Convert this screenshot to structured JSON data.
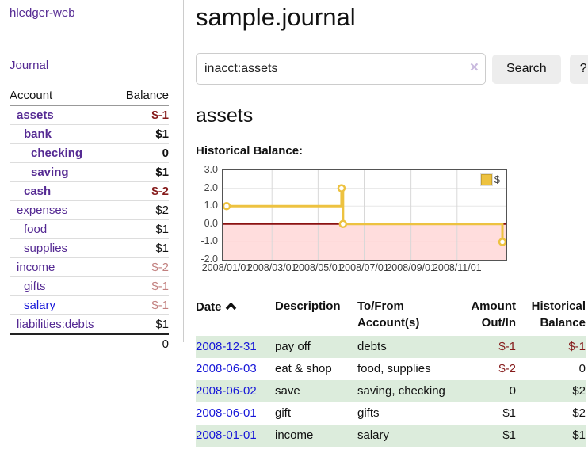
{
  "app_title": "hledger-web",
  "sidebar": {
    "journal_link": "Journal",
    "accounts": {
      "header_account": "Account",
      "header_balance": "Balance",
      "rows": [
        {
          "name": "assets",
          "balance": "$-1",
          "indent": 1,
          "bold": true,
          "balance_tone": "neg"
        },
        {
          "name": "bank",
          "balance": "$1",
          "indent": 2,
          "bold": true,
          "balance_tone": "pos"
        },
        {
          "name": "checking",
          "balance": "0",
          "indent": 3,
          "bold": true,
          "balance_tone": "pos"
        },
        {
          "name": "saving",
          "balance": "$1",
          "indent": 3,
          "bold": true,
          "balance_tone": "pos"
        },
        {
          "name": "cash",
          "balance": "$-2",
          "indent": 2,
          "bold": true,
          "balance_tone": "neg"
        },
        {
          "name": "expenses",
          "balance": "$2",
          "indent": 1,
          "bold": false,
          "balance_tone": "pos"
        },
        {
          "name": "food",
          "balance": "$1",
          "indent": 2,
          "bold": false,
          "balance_tone": "pos"
        },
        {
          "name": "supplies",
          "balance": "$1",
          "indent": 2,
          "bold": false,
          "balance_tone": "pos"
        },
        {
          "name": "income",
          "balance": "$-2",
          "indent": 1,
          "bold": false,
          "balance_tone": "neg-soft"
        },
        {
          "name": "gifts",
          "balance": "$-1",
          "indent": 2,
          "bold": false,
          "balance_tone": "neg-soft"
        },
        {
          "name": "salary",
          "balance": "$-1",
          "indent": 2,
          "bold": false,
          "balance_tone": "neg-soft",
          "link_state": "unvisited"
        },
        {
          "name": "liabilities:debts",
          "balance": "$1",
          "indent": 1,
          "bold": false,
          "balance_tone": "pos"
        }
      ],
      "total": "0"
    }
  },
  "main": {
    "page_title": "sample.journal",
    "search": {
      "value": "inacct:assets",
      "clear_icon": "×",
      "search_button": "Search",
      "help_button": "?"
    },
    "account_heading": "assets",
    "chart_title": "Historical Balance:",
    "register": {
      "headers": {
        "date": "Date",
        "description": "Description",
        "accounts": "To/From Account(s)",
        "amount": "Amount Out/In",
        "balance": "Historical Balance"
      },
      "rows": [
        {
          "date": "2008-12-31",
          "description": "pay off",
          "accounts": "debts",
          "amount": "$-1",
          "amount_tone": "neg",
          "balance": "$-1",
          "balance_tone": "neg"
        },
        {
          "date": "2008-06-03",
          "description": "eat & shop",
          "accounts": "food, supplies",
          "amount": "$-2",
          "amount_tone": "neg",
          "balance": "0",
          "balance_tone": "pos"
        },
        {
          "date": "2008-06-02",
          "description": "save",
          "accounts": "saving, checking",
          "amount": "0",
          "amount_tone": "pos",
          "balance": "$2",
          "balance_tone": "pos"
        },
        {
          "date": "2008-06-01",
          "description": "gift",
          "accounts": "gifts",
          "amount": "$1",
          "amount_tone": "pos",
          "balance": "$2",
          "balance_tone": "pos"
        },
        {
          "date": "2008-01-01",
          "description": "income",
          "accounts": "salary",
          "amount": "$1",
          "amount_tone": "pos",
          "balance": "$1",
          "balance_tone": "pos"
        }
      ]
    }
  },
  "chart_data": {
    "type": "line",
    "step": true,
    "title": "Historical Balance:",
    "series": [
      {
        "name": "$",
        "color": "#edc240",
        "points": [
          [
            "2008-01-01",
            1
          ],
          [
            "2008-06-01",
            2
          ],
          [
            "2008-06-03",
            0
          ],
          [
            "2008-12-31",
            -1
          ]
        ]
      }
    ],
    "x_range": [
      "2008-01-01",
      "2008-12-31"
    ],
    "ylim": [
      -2,
      3
    ],
    "yticks": [
      {
        "label": "3.0",
        "value": 3
      },
      {
        "label": "2.0",
        "value": 2
      },
      {
        "label": "1.0",
        "value": 1
      },
      {
        "label": "0.0",
        "value": 0
      },
      {
        "label": "-1.0",
        "value": -1
      },
      {
        "label": "-2.0",
        "value": -2
      }
    ],
    "xticks": [
      {
        "label": "2008/01/01",
        "date": "2008-01-01"
      },
      {
        "label": "2008/03/01",
        "date": "2008-03-01"
      },
      {
        "label": "2008/05/01",
        "date": "2008-05-01"
      },
      {
        "label": "2008/07/01",
        "date": "2008-07-01"
      },
      {
        "label": "2008/09/01",
        "date": "2008-09-01"
      },
      {
        "label": "2008/11/01",
        "date": "2008-11-01"
      }
    ],
    "legend_position": "top-right",
    "negative_region_fill": "#ffdddd",
    "zero_line_color": "#8b1111",
    "grid_color": "#d8d8d8"
  },
  "colors": {
    "link_visited_purple": "#552a93",
    "link_blue": "#1717d8",
    "negative_strong": "#851a1a",
    "negative_soft": "#c2807f",
    "row_green": "#dcecdc",
    "chart_line_gold": "#edc240"
  }
}
